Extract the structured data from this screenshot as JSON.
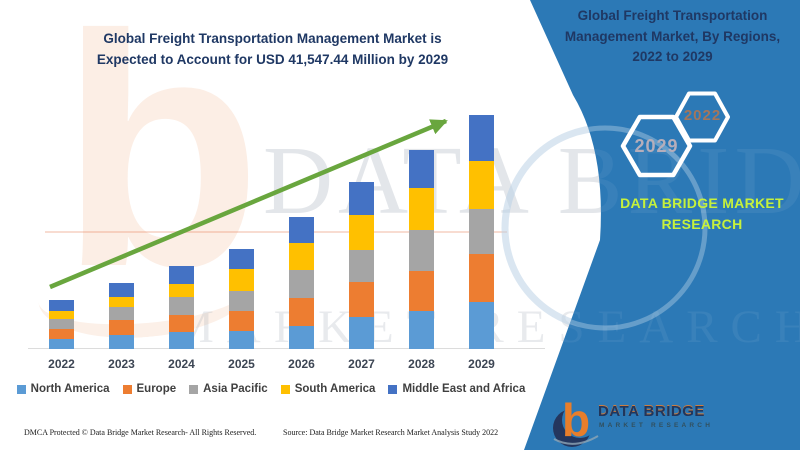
{
  "header": {
    "title_line1": "Global Freight Transportation Management Market is",
    "title_line2": "Expected to Account for USD 41,547.44 Million by 2029"
  },
  "panel": {
    "title_lines": [
      "Global Freight Transportation",
      "Management Market, By Regions,",
      "2022 to 2029"
    ],
    "hexagons": [
      {
        "label": "2029"
      },
      {
        "label": "2022"
      }
    ],
    "brand_line1": "DATA BRIDGE MARKET",
    "brand_line2": "RESEARCH",
    "logo": {
      "glyph": "b",
      "wordmark": "DATA BRIDGE",
      "tagline": "MARKET RESEARCH"
    }
  },
  "chart_data": {
    "type": "bar",
    "stacked": true,
    "title": "Global Freight Transportation Management Market is Expected to Account for USD 41,547.44 Million by 2029",
    "highlight_value": "USD 41,547.44 Million by 2029",
    "xlabel": "",
    "ylabel": "",
    "y_axis_shown": false,
    "grid": false,
    "legend_position": "bottom",
    "units": "relative stacked-segment heights in screen pixels (chart shows no value axis)",
    "categories": [
      "2022",
      "2023",
      "2024",
      "2025",
      "2026",
      "2027",
      "2028",
      "2029"
    ],
    "series": [
      {
        "name": "North America",
        "color": "#5B9BD5",
        "values": [
          10,
          14,
          17,
          18,
          23,
          32,
          38,
          47
        ]
      },
      {
        "name": "Europe",
        "color": "#ED7D31",
        "values": [
          10,
          15,
          17,
          20,
          28,
          35,
          40,
          48
        ]
      },
      {
        "name": "Asia Pacific",
        "color": "#A5A5A5",
        "values": [
          10,
          13,
          18,
          20,
          28,
          32,
          41,
          45
        ]
      },
      {
        "name": "South America",
        "color": "#FFC000",
        "values": [
          8,
          10,
          13,
          22,
          27,
          35,
          42,
          48
        ]
      },
      {
        "name": "Middle East and Africa",
        "color": "#4472C4",
        "values": [
          11,
          14,
          18,
          20,
          26,
          33,
          38,
          46
        ]
      }
    ],
    "totals": [
      49,
      66,
      83,
      100,
      132,
      167,
      199,
      234
    ],
    "annotations": [
      "green upward trend arrow from 2022 bar to 2029 bar top"
    ]
  },
  "footer": {
    "dmca": "DMCA Protected © Data Bridge Market Research- All Rights Reserved.",
    "source": "Source: Data Bridge Market Research Market Analysis Study 2022"
  },
  "watermarks": {
    "big_letter": "b",
    "line1": "DATA BRIDGE",
    "line2": "MARKET RESEARCH"
  },
  "colors": {
    "panel_blue": "#2C79B6",
    "title_navy": "#1F3864",
    "brand_green": "#C6F13C",
    "arrow_green": "#69A63E",
    "logo_orange": "#E87E2B",
    "logo_navy": "#24365E"
  }
}
